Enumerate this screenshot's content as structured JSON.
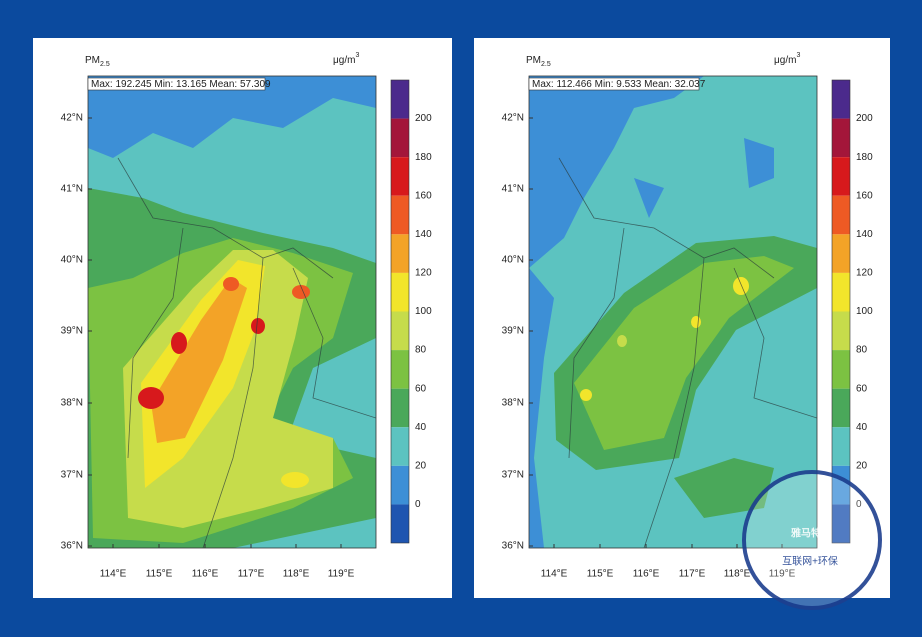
{
  "panels": [
    {
      "title": {
        "text": "PM",
        "subscript": "2.5"
      },
      "unit": {
        "text": "μg/m",
        "superscript": "3"
      },
      "stats": "Max: 192.245  Min: 13.165  Mean: 57.309",
      "lat_labels": [
        "42°N",
        "41°N",
        "40°N",
        "39°N",
        "38°N",
        "37°N",
        "36°N"
      ],
      "lon_labels": [
        "114°E",
        "115°E",
        "116°E",
        "117°E",
        "118°E",
        "119°E"
      ],
      "colorbar": {
        "labels": [
          200,
          180,
          160,
          140,
          120,
          100,
          80,
          60,
          40,
          20,
          0
        ],
        "colors": [
          "#4b2a8c",
          "#a3163a",
          "#d7191c",
          "#ee5a24",
          "#f3a327",
          "#f2e52b",
          "#c6dc4b",
          "#7cc242",
          "#4aa85a",
          "#5cc3c0",
          "#3d8fd6",
          "#1f55b0"
        ]
      }
    },
    {
      "title": {
        "text": "PM",
        "subscript": "2.5"
      },
      "unit": {
        "text": "μg/m",
        "superscript": "3"
      },
      "stats": "Max: 112.466  Min: 9.533  Mean: 32.037",
      "lat_labels": [
        "42°N",
        "41°N",
        "40°N",
        "39°N",
        "38°N",
        "37°N",
        "36°N"
      ],
      "lon_labels": [
        "114°E",
        "115°E",
        "116°E",
        "117°E",
        "118°E",
        "119°E"
      ],
      "colorbar": {
        "labels": [
          200,
          180,
          160,
          140,
          120,
          100,
          80,
          60,
          40,
          20,
          0
        ],
        "colors": [
          "#4b2a8c",
          "#a3163a",
          "#d7191c",
          "#ee5a24",
          "#f3a327",
          "#f2e52b",
          "#c6dc4b",
          "#7cc242",
          "#4aa85a",
          "#5cc3c0",
          "#3d8fd6",
          "#1f55b0"
        ]
      }
    }
  ],
  "watermark": {
    "name": "雅马特",
    "tagline": "互联网+环保"
  }
}
